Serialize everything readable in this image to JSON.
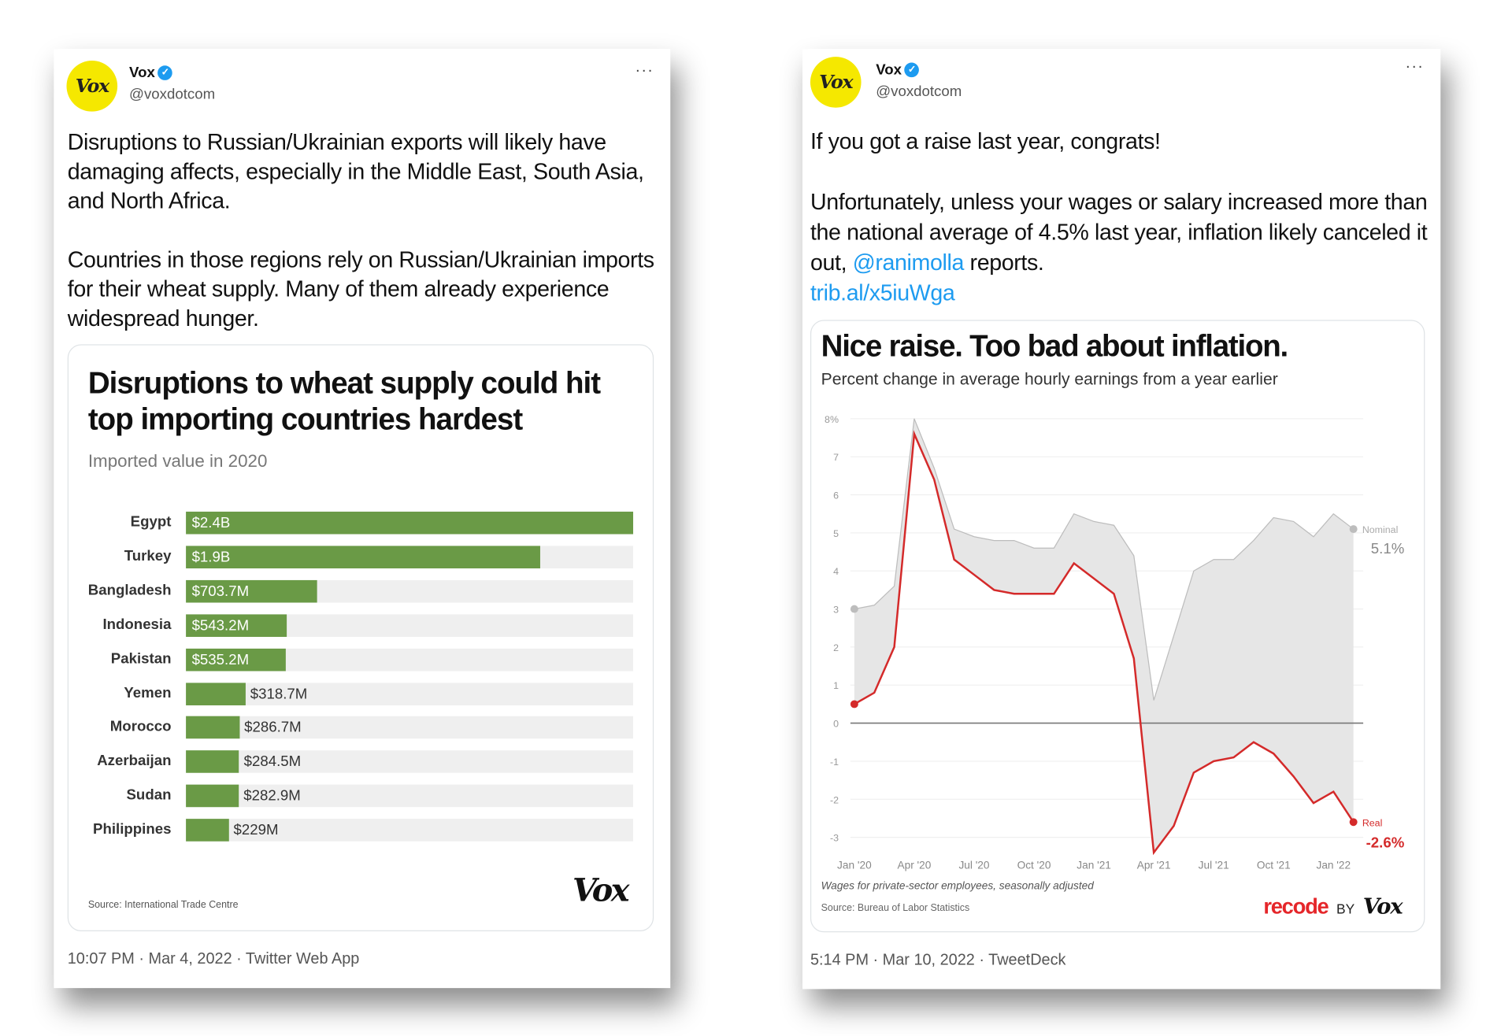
{
  "tweets": [
    {
      "author": "Vox",
      "avatar_text": "Vox",
      "handle": "@voxdotcom",
      "more_icon": "more-horizontal-icon",
      "paragraphs": [
        "Disruptions to Russian/Ukrainian exports will likely have damaging affects, especially in the Middle East, South Asia, and North Africa.",
        "Countries in those regions rely on Russian/Ukrainian imports for their wheat supply. Many of them already experience widespread hunger."
      ],
      "meta": "10:07 PM · Mar 4, 2022 · Twitter Web App"
    },
    {
      "author": "Vox",
      "avatar_text": "Vox",
      "handle": "@voxdotcom",
      "more_icon": "more-horizontal-icon",
      "p1": "If you got a raise last year, congrats!",
      "p2_before": "Unfortunately, unless your wages or salary increased more than the national average of 4.5% last year, inflation likely canceled it out, ",
      "mention": "@ranimolla",
      "p2_after": " reports.",
      "url": "trib.al/x5iuWga",
      "meta": "5:14 PM · Mar 10, 2022 · TweetDeck"
    }
  ],
  "colors": {
    "bar": "#6a9a46",
    "real": "#d42a2a",
    "nominal": "#bdbdbd",
    "area": "#e6e6e6",
    "link": "#1d9bf0",
    "avatar": "#f5e800"
  },
  "chart_data": [
    {
      "type": "bar",
      "orientation": "horizontal",
      "title": "Disruptions to wheat supply could hit top importing countries hardest",
      "subtitle": "Imported value in 2020",
      "categories": [
        "Egypt",
        "Turkey",
        "Bangladesh",
        "Indonesia",
        "Pakistan",
        "Yemen",
        "Morocco",
        "Azerbaijan",
        "Sudan",
        "Philippines"
      ],
      "values": [
        2400,
        1900,
        703.7,
        543.2,
        535.2,
        318.7,
        286.7,
        284.5,
        282.9,
        229
      ],
      "unit": "million USD",
      "value_labels": [
        "$2.4B",
        "$1.9B",
        "$703.7M",
        "$543.2M",
        "$535.2M",
        "$318.7M",
        "$286.7M",
        "$284.5M",
        "$282.9M",
        "$229M"
      ],
      "xlim": [
        0,
        2400
      ],
      "source": "Source: International Trade Centre",
      "logo": "Vox"
    },
    {
      "type": "line",
      "title": "Nice raise. Too bad about inflation.",
      "subtitle": "Percent change in average hourly earnings from a year earlier",
      "x": [
        "Jan 2020",
        "Feb 2020",
        "Mar 2020",
        "Apr 2020",
        "May 2020",
        "Jun 2020",
        "Jul 2020",
        "Aug 2020",
        "Sep 2020",
        "Oct 2020",
        "Nov 2020",
        "Dec 2020",
        "Jan 2021",
        "Feb 2021",
        "Mar 2021",
        "Apr 2021",
        "May 2021",
        "Jun 2021",
        "Jul 2021",
        "Aug 2021",
        "Sep 2021",
        "Oct 2021",
        "Nov 2021",
        "Dec 2021",
        "Jan 2022",
        "Feb 2022"
      ],
      "x_tick_labels": [
        "Jan '20",
        "Apr '20",
        "Jul '20",
        "Oct '20",
        "Jan '21",
        "Apr '21",
        "Jul '21",
        "Oct '21",
        "Jan '22"
      ],
      "y_tick_labels": [
        "8%",
        "7",
        "6",
        "5",
        "4",
        "3",
        "2",
        "1",
        "0",
        "-1",
        "-2",
        "-3"
      ],
      "ylim": [
        -3.4,
        8
      ],
      "grid": true,
      "series": [
        {
          "name": "Nominal",
          "end_label": "5.1%",
          "values": [
            3.0,
            3.1,
            3.6,
            8.0,
            6.7,
            5.1,
            4.9,
            4.8,
            4.8,
            4.6,
            4.6,
            5.5,
            5.3,
            5.2,
            4.4,
            0.6,
            2.3,
            4.0,
            4.3,
            4.3,
            4.8,
            5.4,
            5.3,
            4.9,
            5.5,
            5.1
          ]
        },
        {
          "name": "Real",
          "end_label": "-2.6%",
          "values": [
            0.5,
            0.8,
            2.0,
            7.6,
            6.4,
            4.3,
            3.9,
            3.5,
            3.4,
            3.4,
            3.4,
            4.2,
            3.8,
            3.4,
            1.7,
            -3.4,
            -2.7,
            -1.3,
            -1.0,
            -0.9,
            -0.5,
            -0.8,
            -1.4,
            -2.1,
            -1.8,
            -2.6
          ]
        }
      ],
      "note": "Wages for private-sector employees, seasonally adjusted",
      "source": "Source: Bureau of Labor Statistics",
      "logo_recode": "recode",
      "logo_by": "BY",
      "logo_vox": "Vox"
    }
  ]
}
